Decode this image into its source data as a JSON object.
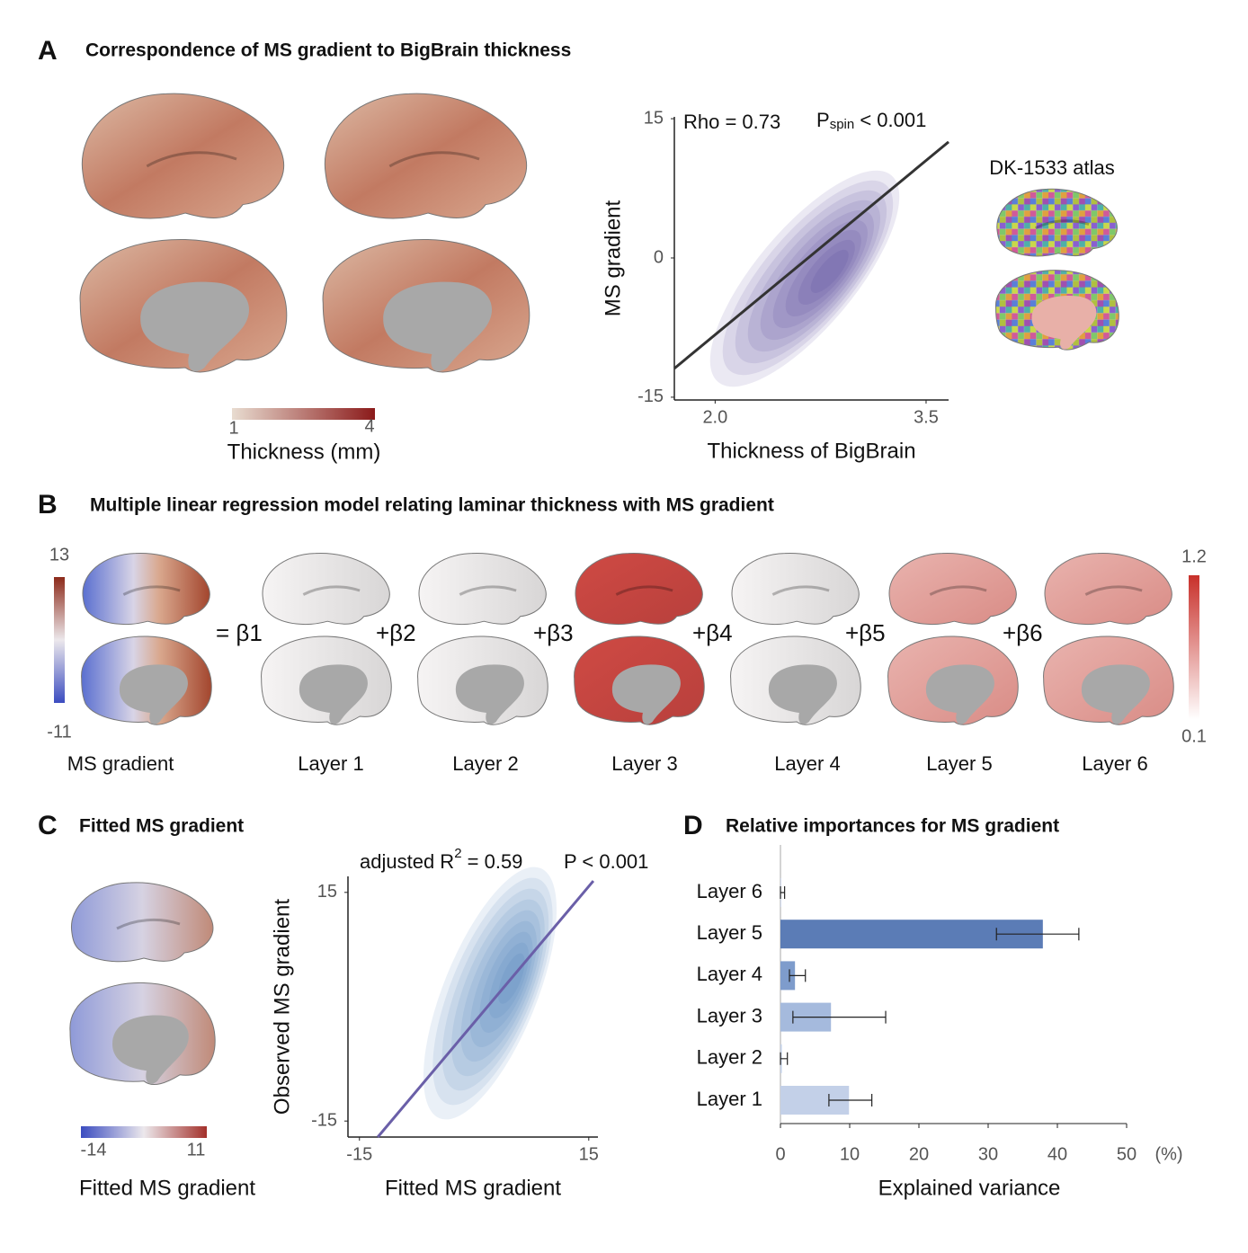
{
  "panels": {
    "a": {
      "letter": "A",
      "title": "Correspondence of MS gradient to BigBrain thickness",
      "colorbar": {
        "ticks": [
          1,
          4
        ],
        "label": "Thickness (mm)"
      },
      "atlas_label": "DK-1533 atlas"
    },
    "b": {
      "letter": "B",
      "title": "Multiple linear regression model relating laminar thickness with MS gradient",
      "left_colorbar": {
        "ticks": [
          13,
          -11
        ]
      },
      "right_colorbar": {
        "ticks": [
          1.2,
          0.1
        ]
      },
      "terms": [
        "= β1",
        "+β2",
        "+β3",
        "+β4",
        "+β5",
        "+β6"
      ],
      "labels": [
        "MS gradient",
        "Layer 1",
        "Layer 2",
        "Layer 3",
        "Layer 4",
        "Layer 5",
        "Layer 6"
      ]
    },
    "c": {
      "letter": "C",
      "title": "Fitted MS gradient",
      "colorbar": {
        "ticks": [
          -14,
          11
        ],
        "label": "Fitted MS gradient"
      }
    },
    "d": {
      "letter": "D",
      "title": "Relative importances for MS gradient"
    }
  },
  "chart_data": [
    {
      "type": "density",
      "xlabel": "Thickness of BigBrain",
      "ylabel": "MS gradient",
      "xlim": [
        1.71,
        3.66
      ],
      "ylim": [
        -15.3,
        15.2
      ],
      "xticks": [
        {
          "value": 2,
          "label": "2.0"
        },
        {
          "value": 3.5,
          "label": "3.5"
        }
      ],
      "yticks": [
        -15,
        0,
        15
      ],
      "annotation_1": "Rho = 0.73",
      "annotation_2": {
        "base": "P",
        "sub": "spin",
        "rest": " < 0.001"
      },
      "fit_line": {
        "x": [
          1.71,
          3.66
        ],
        "y": [
          -11.9,
          12.5
        ]
      },
      "line_color": "#333333",
      "density_color": "#3f2a8c"
    },
    {
      "type": "density",
      "xlabel": "Fitted MS gradient",
      "ylabel": "Observed MS gradient",
      "xlim": [
        -16.5,
        16.2
      ],
      "ylim": [
        -17.1,
        17.1
      ],
      "xticks": [
        -15,
        15
      ],
      "yticks": [
        -15,
        15
      ],
      "annotation_1": {
        "base": "adjusted R",
        "sup": "2",
        "rest": " = 0.59"
      },
      "annotation_2": "P < 0.001",
      "fit_line": {
        "x": [
          -12.6,
          15.6
        ],
        "y": [
          -17.1,
          16.5
        ]
      },
      "line_color": "#6a5fa8",
      "density_color": "#2e6db0"
    },
    {
      "type": "hbar",
      "categories": [
        "Layer 1",
        "Layer 2",
        "Layer 3",
        "Layer 4",
        "Layer 5",
        "Layer 6"
      ],
      "values": [
        9.9,
        0.2,
        7.3,
        2.1,
        37.9,
        0.1
      ],
      "error_minus": [
        2.9,
        0.2,
        5.5,
        0.8,
        6.7,
        0.1
      ],
      "error_plus": [
        3.3,
        0.8,
        7.9,
        1.5,
        5.2,
        0.5
      ],
      "colors": [
        "#c3d0e8",
        "#c3d0e8",
        "#a5badd",
        "#7e9ccc",
        "#5b7cb6",
        "#c3d0e8"
      ],
      "xlim": [
        0,
        50
      ],
      "xticks": [
        0,
        10,
        20,
        30,
        40,
        50
      ],
      "x_unit": "(%)",
      "xlabel": "Explained variance"
    }
  ]
}
